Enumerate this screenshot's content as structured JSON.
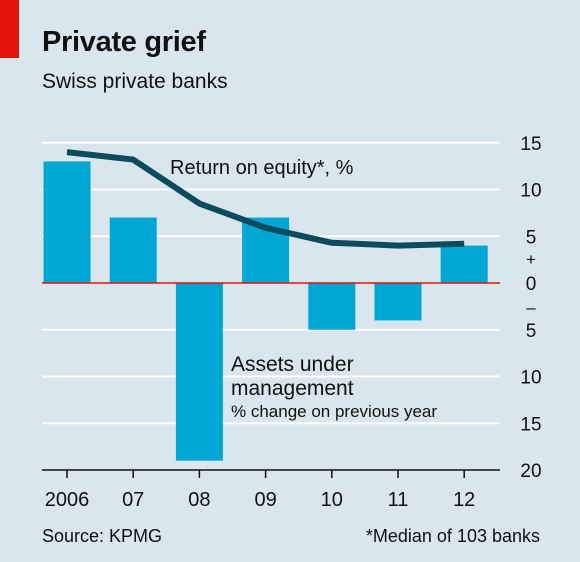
{
  "header": {
    "title": "Private grief",
    "subtitle": "Swiss private banks"
  },
  "footer": {
    "source": "Source: KPMG",
    "note": "*Median of 103 banks"
  },
  "colors": {
    "background": "#d9e6ed",
    "bars": "#00a7d4",
    "line": "#0b4b5e",
    "zero_line": "#e3120b",
    "accent": "#e3120b"
  },
  "chart_data": {
    "type": "bar",
    "categories": [
      "2006",
      "07",
      "08",
      "09",
      "10",
      "11",
      "12"
    ],
    "series": [
      {
        "name": "Assets under management",
        "label_line1": "Assets under",
        "label_line2": "management",
        "label_line3": "% change on previous year",
        "type": "bar",
        "values": [
          13,
          7,
          -19,
          7,
          -5,
          -4,
          4
        ]
      },
      {
        "name": "Return on equity*, %",
        "type": "line",
        "values": [
          14,
          13.2,
          8.5,
          5.9,
          4.3,
          4.0,
          4.2
        ]
      }
    ],
    "yaxis": {
      "lim": [
        -20,
        15
      ],
      "ticks": [
        15,
        10,
        5,
        0,
        -5,
        -10,
        -15,
        -20
      ],
      "tick_labels": [
        "15",
        "10",
        "5",
        "0",
        "5",
        "10",
        "15",
        "20"
      ],
      "plus_sign": "+",
      "minus_sign": "–",
      "position": "right"
    },
    "grid": true
  }
}
